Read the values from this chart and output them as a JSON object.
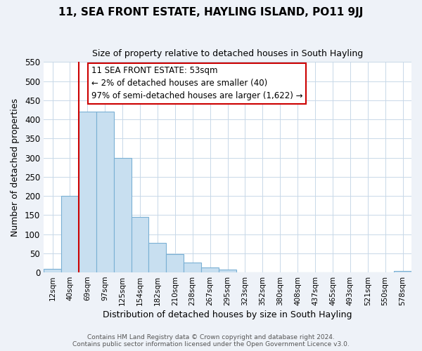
{
  "title": "11, SEA FRONT ESTATE, HAYLING ISLAND, PO11 9JJ",
  "subtitle": "Size of property relative to detached houses in South Hayling",
  "xlabel": "Distribution of detached houses by size in South Hayling",
  "ylabel": "Number of detached properties",
  "bar_labels": [
    "12sqm",
    "40sqm",
    "69sqm",
    "97sqm",
    "125sqm",
    "154sqm",
    "182sqm",
    "210sqm",
    "238sqm",
    "267sqm",
    "295sqm",
    "323sqm",
    "352sqm",
    "380sqm",
    "408sqm",
    "437sqm",
    "465sqm",
    "493sqm",
    "521sqm",
    "550sqm",
    "578sqm"
  ],
  "bar_values": [
    10,
    200,
    420,
    420,
    300,
    145,
    78,
    48,
    25,
    13,
    8,
    0,
    0,
    0,
    0,
    0,
    0,
    0,
    0,
    0,
    3
  ],
  "bar_color": "#c8dff0",
  "bar_edge_color": "#7ab0d4",
  "vline_x_idx": 1,
  "vline_color": "#cc0000",
  "annotation_line1": "11 SEA FRONT ESTATE: 53sqm",
  "annotation_line2": "← 2% of detached houses are smaller (40)",
  "annotation_line3": "97% of semi-detached houses are larger (1,622) →",
  "annotation_box_color": "#ffffff",
  "annotation_box_edge": "#cc0000",
  "ylim": [
    0,
    550
  ],
  "yticks": [
    0,
    50,
    100,
    150,
    200,
    250,
    300,
    350,
    400,
    450,
    500,
    550
  ],
  "footer_line1": "Contains HM Land Registry data © Crown copyright and database right 2024.",
  "footer_line2": "Contains public sector information licensed under the Open Government Licence v3.0.",
  "bg_color": "#eef2f8",
  "plot_bg_color": "#ffffff",
  "grid_color": "#c8d8e8"
}
